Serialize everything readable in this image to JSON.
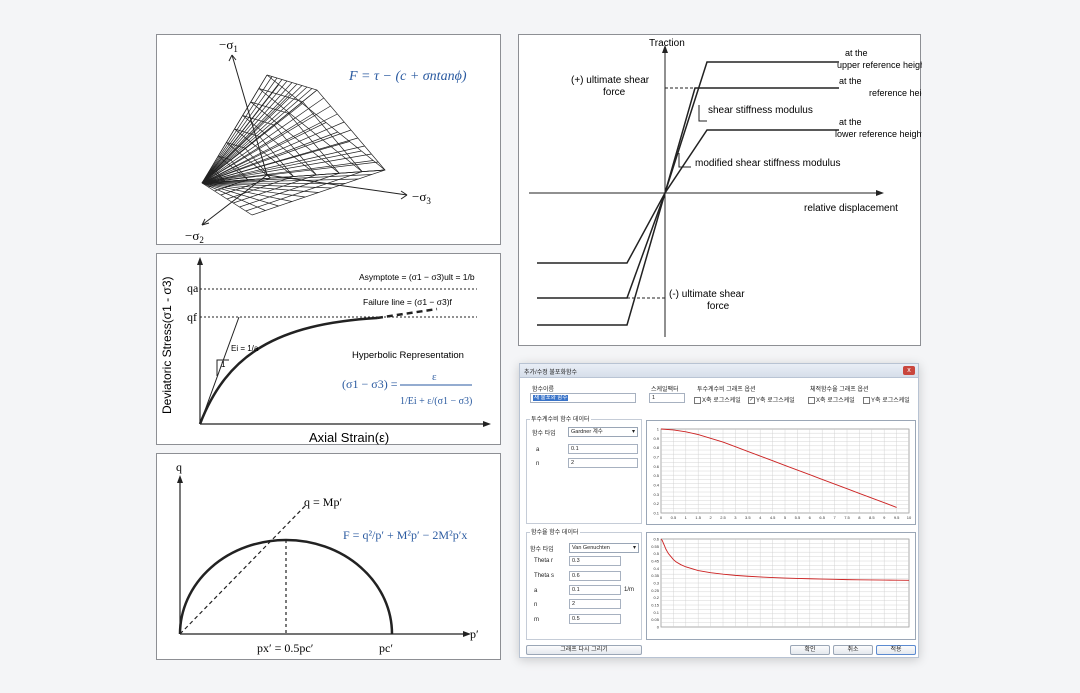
{
  "panel_yield": {
    "axis_sigma1": "−σ",
    "axis_sigma1_sub": "1",
    "axis_sigma2": "−σ",
    "axis_sigma2_sub": "2",
    "axis_sigma3": "−σ",
    "axis_sigma3_sub": "3",
    "formula": "F = τ − (c + σntanϕ)"
  },
  "panel_hyperbolic": {
    "ylabel": "Deviatoric Stress(σ1 - σ3)",
    "xlabel": "Axial Strain(ε)",
    "qa": "qa",
    "qf": "qf",
    "asymptote": "Asymptote = (σ1 − σ3)ult = 1/b",
    "failure_line": "Failure line = (σ1 − σ3)f",
    "ei_label": "Ei = 1/a",
    "slope_one": "1",
    "title": "Hyperbolic Representation",
    "formula_lhs": "(σ1 − σ3) =",
    "formula_num": "ε",
    "formula_den": "1/Ei + ε/(σ1 − σ3)"
  },
  "panel_cam": {
    "ylabel": "q",
    "xlabel": "p′",
    "line_label": "q = Mp′",
    "formula": "F = q²/p′ + M²p′ − 2M²p′x",
    "px_label": "px′ = 0.5pc′",
    "pc_label": "pc′"
  },
  "panel_traction": {
    "ylabel": "Traction",
    "xlabel": "relative displacement",
    "pos_ult": "(+) ultimate shear force",
    "neg_ult": "(-) ultimate shear force",
    "upper": "at the upper reference height",
    "reference": "at the reference height",
    "lower": "at the lower reference height",
    "shear_mod": "shear stiffness modulus",
    "mod_shear_mod": "modified shear stiffness modulus"
  },
  "dialog": {
    "title": "추가/수정 불포화함수",
    "close": "x",
    "func_name_label": "함수이름",
    "func_name_value": "새 불포화 함수",
    "scale_label": "스케일팩터",
    "scale_value": "1",
    "perm_graph_label": "투수계수비 그래프 옵션",
    "perm_x_log": "X축 로그스케일",
    "perm_y_log": "Y축 로그스케일",
    "vol_graph_label": "체적함수율 그래프 옵션",
    "vol_x_log": "X축 로그스케일",
    "vol_y_log": "Y축 로그스케일",
    "perm_data_label": "투수계수비 함수 데이터",
    "perm_type_label": "함수 타입",
    "perm_type_value": "Gardner 계수",
    "perm_a_label": "a",
    "perm_a_value": "0.1",
    "perm_n_label": "n",
    "perm_n_value": "2",
    "vol_data_label": "함수율 함수 데이터",
    "vol_type_label": "함수 타입",
    "vol_type_value": "Van Genuchten",
    "theta_r_label": "Theta r",
    "theta_r_value": "0.3",
    "theta_s_label": "Theta s",
    "theta_s_value": "0.6",
    "vol_a_label": "a",
    "vol_a_value": "0.1",
    "vol_a_unit": "1/m",
    "vol_n_label": "n",
    "vol_n_value": "2",
    "vol_m_label": "m",
    "vol_m_value": "0.5",
    "redraw_button": "그래프 다시 그리기",
    "ok_button": "확인",
    "cancel_button": "취소",
    "apply_button": "적용",
    "accent_color": "#cc2222"
  },
  "chart_data": [
    {
      "type": "line",
      "x": [
        0,
        0.5,
        1,
        1.5,
        2,
        2.5,
        3,
        3.5,
        4,
        4.5,
        5,
        5.5,
        6,
        6.5,
        7,
        7.5,
        8,
        8.5,
        9,
        9.5
      ],
      "series": [
        {
          "values": [
            1.0,
            0.99,
            0.97,
            0.94,
            0.9,
            0.86,
            0.81,
            0.76,
            0.71,
            0.66,
            0.61,
            0.56,
            0.51,
            0.46,
            0.41,
            0.36,
            0.31,
            0.26,
            0.21,
            0.16
          ]
        }
      ],
      "xticks": [
        "0",
        "0.5",
        "1",
        "1.5",
        "2",
        "2.5",
        "3",
        "3.5",
        "4",
        "4.5",
        "5",
        "5.5",
        "6",
        "6.5",
        "7",
        "7.5",
        "8",
        "8.5",
        "9",
        "9.5",
        "10"
      ],
      "yticks": [
        "1",
        "0.9",
        "0.8",
        "0.7",
        "0.6",
        "0.5",
        "0.4",
        "0.3",
        "0.2",
        "0.1"
      ],
      "xlim": [
        0,
        10
      ],
      "ylim": [
        0.1,
        1.0
      ],
      "grid": true
    },
    {
      "type": "line",
      "x": [
        0,
        0.5,
        1,
        1.5,
        2,
        3,
        4,
        5,
        6,
        8,
        10,
        15,
        20,
        25,
        30,
        35,
        40,
        45,
        50,
        55,
        60,
        65,
        70,
        75,
        80,
        85,
        90,
        95,
        100
      ],
      "series": [
        {
          "values": [
            0.6,
            0.59,
            0.57,
            0.55,
            0.53,
            0.5,
            0.48,
            0.46,
            0.445,
            0.425,
            0.41,
            0.385,
            0.37,
            0.36,
            0.352,
            0.346,
            0.341,
            0.337,
            0.334,
            0.331,
            0.329,
            0.327,
            0.325,
            0.323,
            0.322,
            0.321,
            0.32,
            0.319,
            0.318
          ]
        }
      ],
      "yticks": [
        "0.6",
        "0.55",
        "0.5",
        "0.45",
        "0.4",
        "0.35",
        "0.3",
        "0.25",
        "0.2",
        "0.15",
        "0.1",
        "0.05",
        "0"
      ],
      "ylim": [
        0,
        0.6
      ],
      "xlim": [
        0,
        100
      ],
      "grid": true
    }
  ]
}
